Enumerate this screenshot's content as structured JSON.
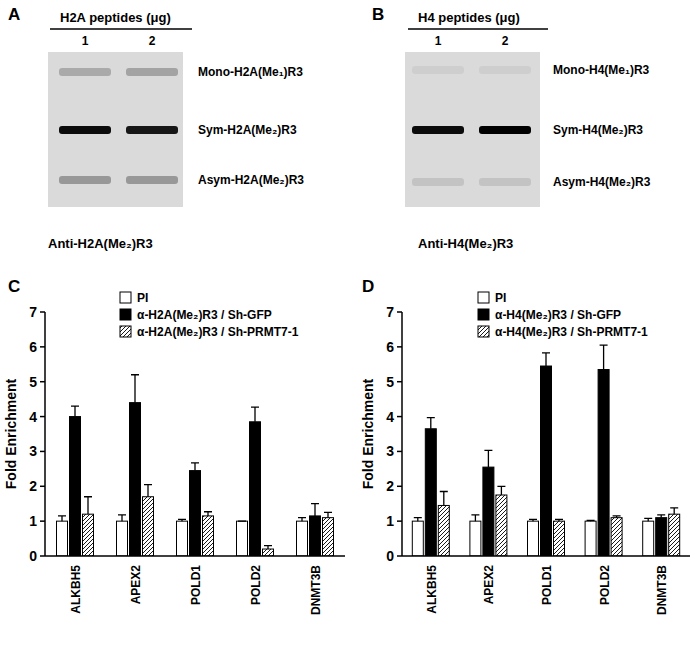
{
  "blots": [
    {
      "panel": "A",
      "title": "H2A peptides (μg)",
      "lanes": [
        1,
        2
      ],
      "antibody": "Anti-H2A(Me₂)R3",
      "bands": [
        {
          "label": "Mono-H2A(Me₁)R3",
          "intensity": [
            0.22,
            0.25
          ]
        },
        {
          "label": "Sym-H2A(Me₂)R3",
          "intensity": [
            0.95,
            0.9
          ]
        },
        {
          "label": "Asym-H2A(Me₂)R3",
          "intensity": [
            0.3,
            0.3
          ]
        }
      ]
    },
    {
      "panel": "B",
      "title": "H4 peptides (μg)",
      "lanes": [
        1,
        2
      ],
      "antibody": "Anti-H4(Me₂)R3",
      "bands": [
        {
          "label": "Mono-H4(Me₁)R3",
          "intensity": [
            0.05,
            0.05
          ]
        },
        {
          "label": "Sym-H4(Me₂)R3",
          "intensity": [
            0.95,
            1.0
          ]
        },
        {
          "label": "Asym-H4(Me₂)R3",
          "intensity": [
            0.1,
            0.1
          ]
        }
      ]
    }
  ],
  "chart_data": [
    {
      "type": "bar",
      "annotations": [
        "C"
      ],
      "y_label": "Fold Enrichment",
      "categories": [
        "ALKBH5",
        "APEX2",
        "POLD1",
        "POLD2",
        "DNMT3B"
      ],
      "series": [
        {
          "name": "PI",
          "color": "#ffffff",
          "values": [
            1.0,
            1.0,
            1.0,
            1.0,
            1.0
          ],
          "errors": [
            0.15,
            0.18,
            0.05,
            0.0,
            0.1
          ]
        },
        {
          "name": "α-H2A(Me₂)R3 / Sh-GFP",
          "color": "#000000",
          "values": [
            4.0,
            4.4,
            2.45,
            3.85,
            1.15
          ],
          "errors": [
            0.3,
            0.8,
            0.22,
            0.42,
            0.35
          ]
        },
        {
          "name": "α-H2A(Me₂)R3 / Sh-PRMT7-1",
          "color": "#ffffff",
          "values": [
            1.2,
            1.7,
            1.15,
            0.2,
            1.1
          ],
          "errors": [
            0.5,
            0.35,
            0.12,
            0.1,
            0.15
          ]
        }
      ],
      "ylim": [
        0,
        7
      ],
      "yticks": [
        0,
        1,
        2,
        3,
        4,
        5,
        6,
        7
      ],
      "legend": "top"
    },
    {
      "type": "bar",
      "annotations": [
        "D"
      ],
      "y_label": "Fold Enrichment",
      "categories": [
        "ALKBH5",
        "APEX2",
        "POLD1",
        "POLD2",
        "DNMT3B"
      ],
      "series": [
        {
          "name": "PI",
          "color": "#ffffff",
          "values": [
            1.0,
            1.0,
            1.0,
            1.0,
            1.0
          ],
          "errors": [
            0.1,
            0.18,
            0.05,
            0.02,
            0.08
          ]
        },
        {
          "name": "α-H4(Me₂)R3 / Sh-GFP",
          "color": "#000000",
          "values": [
            3.65,
            2.55,
            5.45,
            5.35,
            1.1
          ],
          "errors": [
            0.32,
            0.48,
            0.38,
            0.7,
            0.08
          ]
        },
        {
          "name": "α-H4(Me₂)R3 / Sh-PRMT7-1",
          "color": "#ffffff",
          "values": [
            1.45,
            1.75,
            1.0,
            1.1,
            1.2
          ],
          "errors": [
            0.4,
            0.25,
            0.05,
            0.05,
            0.18
          ]
        }
      ],
      "ylim": [
        0,
        7
      ],
      "yticks": [
        0,
        1,
        2,
        3,
        4,
        5,
        6,
        7
      ],
      "legend": "top"
    }
  ]
}
